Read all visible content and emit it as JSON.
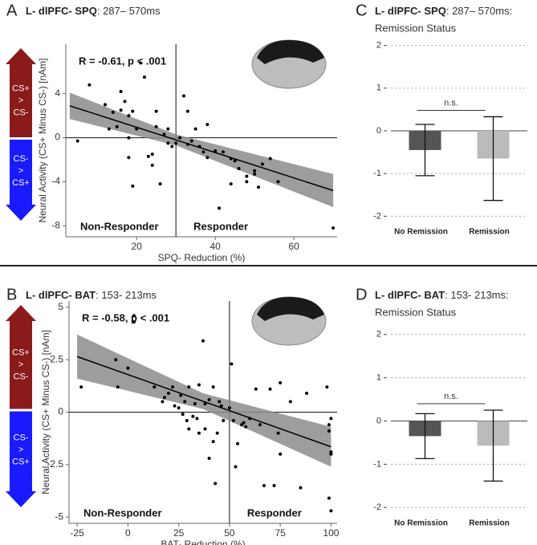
{
  "chart_data": [
    {
      "type": "scatter",
      "panel": "A",
      "title": "L- dlPFC- SPQ",
      "subtitle": ": 287– 570ms",
      "x_label": "SPQ- Reduction (%)",
      "y_label": "Neural Activity (CS+ Minus CS-) [nAm]",
      "stats": "R = -0.61, p < .001",
      "left_label": "Non-Responder",
      "right_label": "Responder",
      "arrows": [
        {
          "lines": [
            "CS+",
            ">",
            "CS-"
          ],
          "color": "#8b1a1a"
        },
        {
          "lines": [
            "CS-",
            ">",
            "CS+"
          ],
          "color": "#1a1aff"
        }
      ],
      "xlim": [
        2,
        71
      ],
      "ylim": [
        -9,
        8.5
      ],
      "xticks": [
        20,
        40,
        60
      ],
      "yticks": [
        4,
        0,
        -4,
        -8
      ],
      "vline": 30,
      "hline": 0,
      "color": "#000000",
      "x": [
        5,
        8,
        12,
        13,
        15,
        14,
        16,
        16,
        17,
        18,
        18,
        18,
        19,
        19,
        20,
        21,
        22,
        23,
        24,
        24,
        25,
        25,
        26,
        27,
        28,
        28,
        29,
        30,
        31,
        32,
        33,
        33,
        34,
        35,
        36,
        37,
        38,
        38,
        40,
        41,
        42,
        44,
        44,
        45,
        46,
        48,
        48,
        50,
        50,
        51,
        52,
        54,
        56,
        70
      ],
      "values": [
        -0.3,
        4.8,
        3,
        0.8,
        1,
        2.3,
        4.2,
        2.5,
        3.3,
        2,
        0,
        -1.8,
        2.4,
        -4.4,
        0.8,
        6.8,
        5.5,
        -1.7,
        -1.5,
        -2.5,
        1,
        2.4,
        -4.2,
        0.3,
        0.8,
        -0.5,
        -0.8,
        -0.5,
        0,
        3.8,
        2.4,
        -0.6,
        -0.3,
        0.8,
        -0.8,
        -1.3,
        -1.8,
        1.2,
        -1.2,
        -6.4,
        -1.3,
        -1.9,
        -4.2,
        -2.1,
        -2.8,
        -3.5,
        -4,
        -3.3,
        -3,
        -4.5,
        -2.4,
        -1.9,
        -4,
        -8.2
      ],
      "fit": {
        "x": [
          3,
          30,
          70
        ],
        "y": [
          2.9,
          -0.2,
          -4.8
        ],
        "lower": [
          1.7,
          -0.7,
          -6.3
        ],
        "upper": [
          4.1,
          0.3,
          -3.3
        ]
      }
    },
    {
      "type": "bar",
      "panel": "C",
      "title": "L- dlPFC- SPQ",
      "subtitle": ": 287– 570ms:",
      "subtitle2": "Remission Status",
      "categories": [
        "No Remission",
        "Remission"
      ],
      "values": [
        -0.45,
        -0.65
      ],
      "errors": [
        0.6,
        0.98
      ],
      "colors": [
        "#555555",
        "#bbbbbb"
      ],
      "annotation": "n.s.",
      "ylim": [
        -2.2,
        2.2
      ],
      "yticks": [
        -2,
        -1,
        0,
        1,
        2
      ],
      "grid": true
    },
    {
      "type": "scatter",
      "panel": "B",
      "title": "L- dlPFC- BAT",
      "subtitle": ": 153- 213ms",
      "x_label": "BAT- Reduction (%)",
      "y_label": "Neural Activity (CS+ Minus CS-) [nAm]",
      "stats": "R = -0.58, p < .001",
      "left_label": "Non-Responder",
      "right_label": "Responder",
      "arrows": [
        {
          "lines": [
            "CS+",
            ">",
            "CS-"
          ],
          "color": "#8b1a1a"
        },
        {
          "lines": [
            "CS-",
            ">",
            "CS+"
          ],
          "color": "#1a1aff"
        }
      ],
      "xlim": [
        -29,
        103
      ],
      "ylim": [
        -5.3,
        5.3
      ],
      "xticks": [
        -25,
        0,
        25,
        50,
        75,
        100
      ],
      "yticks": [
        5,
        2.5,
        0,
        -2.5,
        -5
      ],
      "vline": 50,
      "hline": 0,
      "color": "#000000",
      "x": [
        -23,
        -6,
        -5,
        0,
        3,
        3,
        13,
        17,
        18,
        20,
        22,
        23,
        25,
        26,
        27,
        28,
        29,
        30,
        30,
        32,
        33,
        34,
        35,
        35,
        37,
        38,
        38,
        40,
        40,
        42,
        42,
        43,
        44,
        45,
        46,
        47,
        50,
        51,
        52,
        53,
        54,
        56,
        57,
        58,
        60,
        63,
        65,
        67,
        70,
        72,
        74,
        75,
        75,
        80,
        85,
        88,
        98,
        99,
        99,
        100,
        99,
        100,
        100,
        100
      ],
      "values": [
        1.2,
        2.5,
        1.2,
        2.1,
        4.3,
        4.6,
        1.2,
        0.5,
        0.7,
        0.9,
        1.2,
        0.3,
        0.2,
        0.8,
        -0.1,
        0.5,
        -0.4,
        1.2,
        -0.8,
        -0.2,
        0.4,
        -0.3,
        1.3,
        -1,
        3.4,
        0.4,
        -0.8,
        0.6,
        -2.2,
        1.2,
        -1.4,
        -3.4,
        -1,
        0.5,
        0.3,
        -0.4,
        0.2,
        2.3,
        -0.4,
        -2.6,
        -1.5,
        -0.6,
        -0.5,
        -0.7,
        -0.3,
        1.1,
        -0.6,
        -3.5,
        1.1,
        -3.5,
        -1,
        1.4,
        -2,
        0.5,
        -3.6,
        0.9,
        1.2,
        -0.6,
        -0.9,
        -1.9,
        -4.1,
        -4.7,
        -2,
        -0.3
      ],
      "fit": {
        "x": [
          -25,
          37,
          100
        ],
        "y": [
          2.65,
          0.52,
          -1.65
        ],
        "lower": [
          1.6,
          0.15,
          -2.6
        ],
        "upper": [
          3.7,
          0.9,
          -0.7
        ]
      }
    },
    {
      "type": "bar",
      "panel": "D",
      "title": "L- dlPFC- BAT",
      "subtitle": ": 153- 213ms:",
      "subtitle2": "Remission Status",
      "categories": [
        "No Remission",
        "Remission"
      ],
      "values": [
        -0.35,
        -0.57
      ],
      "errors": [
        0.52,
        0.82
      ],
      "colors": [
        "#555555",
        "#bbbbbb"
      ],
      "annotation": "n.s.",
      "ylim": [
        -2.2,
        2.2
      ],
      "yticks": [
        -2,
        -1,
        0,
        1,
        2
      ],
      "grid": true
    }
  ]
}
